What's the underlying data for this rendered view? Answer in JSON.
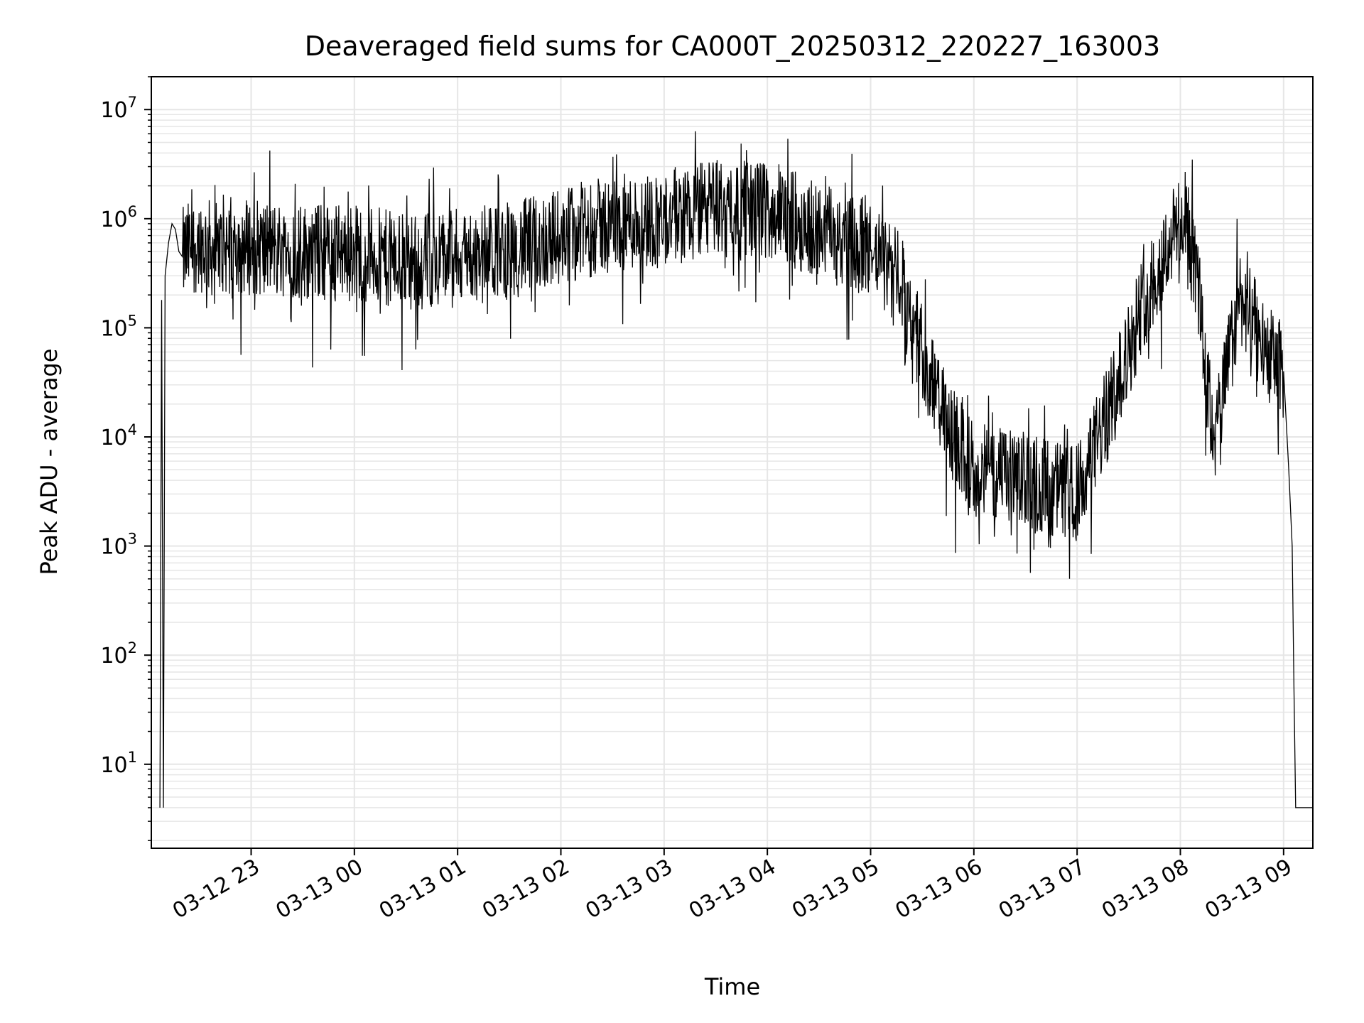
{
  "chart_data": {
    "type": "line",
    "title": "Deaveraged field sums for CA000T_20250312_220227_163003",
    "xlabel": "Time",
    "ylabel": "Peak ADU - average",
    "yscale": "log",
    "ylim": [
      1.7,
      20000000
    ],
    "xlim": [
      "2025-03-12 22:02",
      "2025-03-13 09:17"
    ],
    "grid": true,
    "line_color": "#000000",
    "grid_color": "#e6e6e6",
    "x_ticks": [
      {
        "t": "2025-03-12 23:00",
        "label": "03-12 23"
      },
      {
        "t": "2025-03-13 00:00",
        "label": "03-13 00"
      },
      {
        "t": "2025-03-13 01:00",
        "label": "03-13 01"
      },
      {
        "t": "2025-03-13 02:00",
        "label": "03-13 02"
      },
      {
        "t": "2025-03-13 03:00",
        "label": "03-13 03"
      },
      {
        "t": "2025-03-13 04:00",
        "label": "03-13 04"
      },
      {
        "t": "2025-03-13 05:00",
        "label": "03-13 05"
      },
      {
        "t": "2025-03-13 06:00",
        "label": "03-13 06"
      },
      {
        "t": "2025-03-13 07:00",
        "label": "03-13 07"
      },
      {
        "t": "2025-03-13 08:00",
        "label": "03-13 08"
      },
      {
        "t": "2025-03-13 09:00",
        "label": "03-13 09"
      }
    ],
    "y_ticks": [
      {
        "value": 10,
        "base": "10",
        "exp": "1"
      },
      {
        "value": 100,
        "base": "10",
        "exp": "2"
      },
      {
        "value": 1000,
        "base": "10",
        "exp": "3"
      },
      {
        "value": 10000,
        "base": "10",
        "exp": "4"
      },
      {
        "value": 100000,
        "base": "10",
        "exp": "5"
      },
      {
        "value": 1000000,
        "base": "10",
        "exp": "6"
      },
      {
        "value": 10000000,
        "base": "10",
        "exp": "7"
      }
    ],
    "series": [
      {
        "x": [
          "2025-03-12 22:07",
          "2025-03-12 22:08",
          "2025-03-12 22:09",
          "2025-03-12 22:10",
          "2025-03-12 22:12",
          "2025-03-12 22:14",
          "2025-03-12 22:16",
          "2025-03-12 22:18",
          "2025-03-12 22:20",
          "2025-03-12 22:25",
          "2025-03-12 22:30",
          "2025-03-12 22:40",
          "2025-03-12 22:50",
          "2025-03-12 23:00",
          "2025-03-12 23:30",
          "2025-03-13 00:00",
          "2025-03-13 00:30",
          "2025-03-13 01:00",
          "2025-03-13 01:30",
          "2025-03-13 02:00",
          "2025-03-13 02:30",
          "2025-03-13 03:00",
          "2025-03-13 03:30",
          "2025-03-13 04:00",
          "2025-03-13 04:30",
          "2025-03-13 05:00",
          "2025-03-13 05:15",
          "2025-03-13 05:30",
          "2025-03-13 05:45",
          "2025-03-13 06:00",
          "2025-03-13 06:30",
          "2025-03-13 07:00",
          "2025-03-13 07:20",
          "2025-03-13 07:40",
          "2025-03-13 08:00",
          "2025-03-13 08:10",
          "2025-03-13 08:15",
          "2025-03-13 08:20",
          "2025-03-13 08:35",
          "2025-03-13 08:50",
          "2025-03-13 09:00",
          "2025-03-13 09:03",
          "2025-03-13 09:05",
          "2025-03-13 09:06",
          "2025-03-13 09:07",
          "2025-03-13 09:17"
        ],
        "y": [
          4,
          180000,
          4,
          300000,
          600000,
          900000,
          800000,
          500000,
          450000,
          550000,
          600000,
          500000,
          600000,
          550000,
          500000,
          500000,
          400000,
          450000,
          500000,
          700000,
          900000,
          1000000,
          1300000,
          1200000,
          800000,
          500000,
          300000,
          60000,
          12000,
          5000,
          4000,
          3000,
          20000,
          200000,
          1000000,
          300000,
          30000,
          10000,
          200000,
          60000,
          40000,
          5000,
          1000,
          50,
          4,
          4
        ]
      }
    ]
  }
}
